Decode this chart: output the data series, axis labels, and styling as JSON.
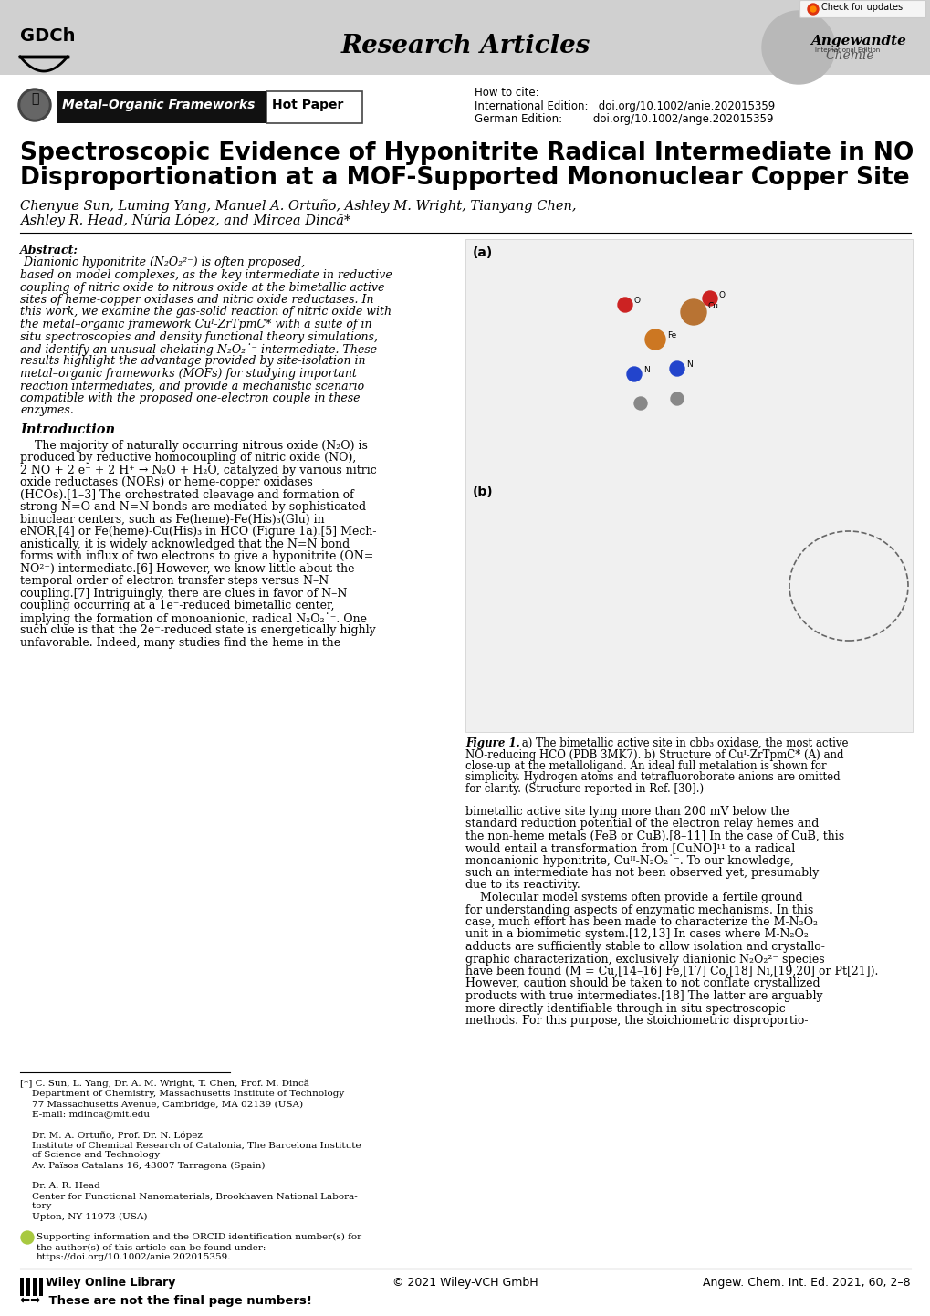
{
  "header_bg": "#d0d0d0",
  "title_line1": "Spectroscopic Evidence of Hyponitrite Radical Intermediate in NO",
  "title_line2": "Disproportionation at a MOF-Supported Mononuclear Copper Site",
  "author_line1": "Chenyue Sun, Luming Yang, Manuel A. Ortuño, Ashley M. Wright, Tianyang Chen,",
  "author_line2": "Ashley R. Head, Núria López, and Mircea Dincă*",
  "abstract_label": "Abstract:",
  "abstract_body": " Dianionic hyponitrite (N₂O₂²⁻) is often proposed, based on model complexes, as the key intermediate in reductive coupling of nitric oxide to nitrous oxide at the bimetallic active sites of heme-copper oxidases and nitric oxide reductases. In this work, we examine the gas-solid reaction of nitric oxide with the metal–organic framework Cuᴵ-ZrTpmC* with a suite of in situ spectroscopies and density functional theory simulations, and identify an unusual chelating N₂O₂˙⁻ intermediate. These results highlight the advantage provided by site-isolation in metal–organic frameworks (MOFs) for studying important reaction intermediates, and provide a mechanistic scenario compatible with the proposed one-electron couple in these enzymes.",
  "intro_heading": "Introduction",
  "cite_intl": "International Edition:   doi.org/10.1002/anie.202015359",
  "cite_ger": "German Edition:         doi.org/10.1002/ange.202015359",
  "fig_caption_bold": "Figure 1.",
  "fig_caption_rest": " a) The bimetallic active site in cbb₃ oxidase, the most active NO-reducing HCO (PDB 3MK7). b) Structure of Cuᴵ-ZrTpmC* (A) and close-up at the metalloligand. An ideal full metalation is shown for simplicity. Hydrogen atoms and tetrafluoroborate anions are omitted for clarity. (Structure reported in Ref. [30].)",
  "bottom_left": "Wiley Online Library",
  "bottom_center": "© 2021 Wiley-VCH GmbH",
  "bottom_right": "Angew. Chem. Int. Ed. 2021, 60, 2–8",
  "bottom_note": "These are not the final page numbers!",
  "bg_color": "#ffffff",
  "header_color": "#d0d0d0"
}
